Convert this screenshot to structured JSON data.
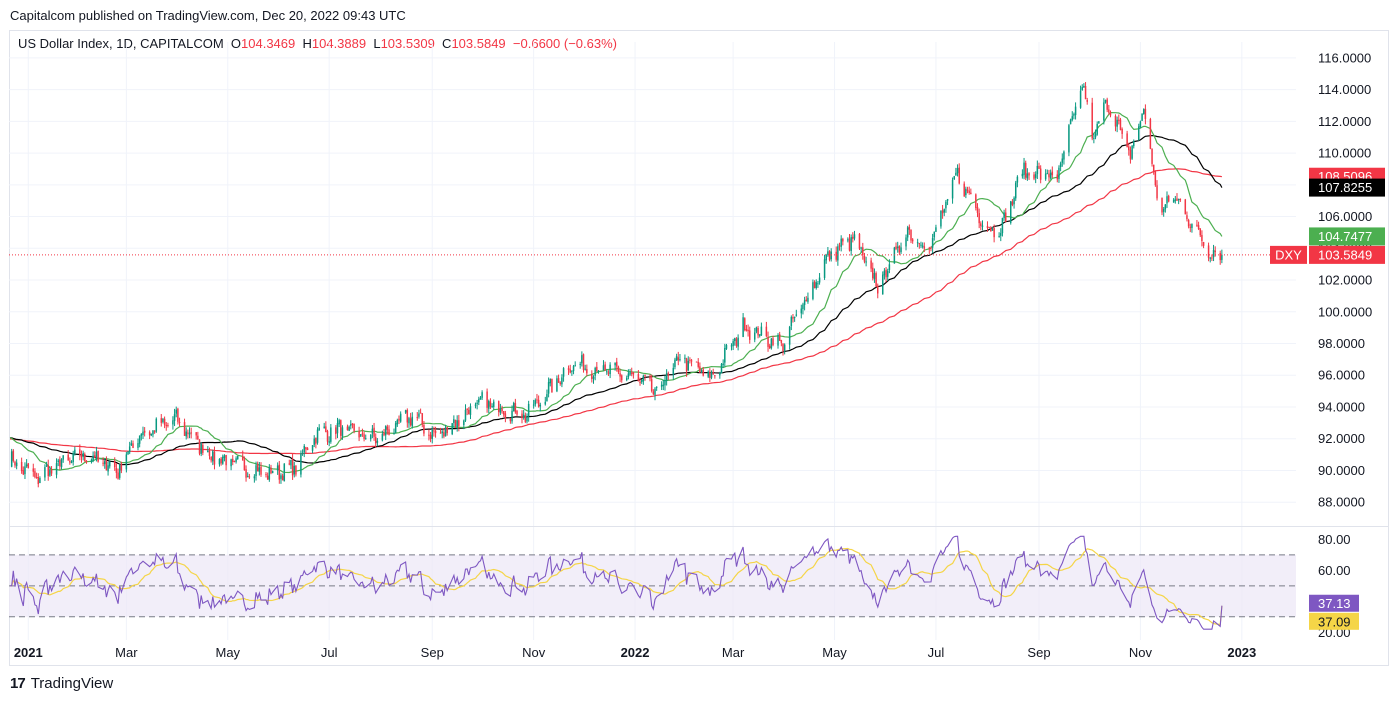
{
  "header": {
    "published": "Capitalcom published on TradingView.com, Dec 20, 2022 09:43 UTC"
  },
  "legend": {
    "symbol": "US Dollar Index, 1D, CAPITALCOM",
    "o_label": "O",
    "o_value": "104.3469",
    "h_label": "H",
    "h_value": "104.3889",
    "l_label": "L",
    "l_value": "103.5309",
    "c_label": "C",
    "c_value": "103.5849",
    "change": "−0.6600 (−0.63%)"
  },
  "footer": {
    "brand": "TradingView",
    "logo": "17"
  },
  "colors": {
    "up": "#089981",
    "down": "#f23645",
    "ma_fast": "#4caf50",
    "ma_mid": "#000000",
    "ma_slow": "#f23645",
    "rsi": "#7e57c2",
    "rsi_ma": "#f5d547",
    "rsi_band": "#ede7f6"
  },
  "chart_data": {
    "type": "candlestick",
    "price_axis": {
      "ticks": [
        "116.0000",
        "114.0000",
        "112.0000",
        "110.0000",
        "108.0000",
        "106.0000",
        "104.0000",
        "102.0000",
        "100.0000",
        "98.0000",
        "96.0000",
        "94.0000",
        "92.0000",
        "90.0000",
        "88.0000"
      ],
      "tick_values": [
        116,
        114,
        112,
        110,
        108,
        106,
        104,
        102,
        100,
        98,
        96,
        94,
        92,
        90,
        88
      ],
      "ylim": [
        86.5,
        117
      ]
    },
    "time_axis": {
      "labels": [
        "2021",
        "Mar",
        "May",
        "Jul",
        "Sep",
        "Nov",
        "2022",
        "Mar",
        "May",
        "Jul",
        "Sep",
        "Nov",
        "2023"
      ],
      "bold": [
        "2021",
        "2022",
        "2023"
      ],
      "label_dates": [
        "2021-01-01",
        "2021-03-01",
        "2021-05-01",
        "2021-07-01",
        "2021-09-01",
        "2021-11-01",
        "2022-01-01",
        "2022-03-01",
        "2022-05-01",
        "2022-07-01",
        "2022-09-01",
        "2022-11-01",
        "2023-01-01"
      ],
      "first_date": "2020-12-21",
      "last_date": "2022-12-20",
      "axis_end_date": "2023-02-05"
    },
    "close_anchors": [
      [
        "2020-12-21",
        90.7
      ],
      [
        "2021-01-06",
        89.5
      ],
      [
        "2021-01-20",
        90.4
      ],
      [
        "2021-02-05",
        91.0
      ],
      [
        "2021-02-24",
        90.0
      ],
      [
        "2021-03-08",
        92.2
      ],
      [
        "2021-03-31",
        93.2
      ],
      [
        "2021-04-20",
        91.0
      ],
      [
        "2021-05-10",
        90.2
      ],
      [
        "2021-05-25",
        89.8
      ],
      [
        "2021-06-10",
        90.1
      ],
      [
        "2021-06-22",
        92.2
      ],
      [
        "2021-07-07",
        92.6
      ],
      [
        "2021-07-30",
        92.0
      ],
      [
        "2021-08-20",
        93.5
      ],
      [
        "2021-09-03",
        92.1
      ],
      [
        "2021-09-30",
        94.3
      ],
      [
        "2021-10-28",
        93.5
      ],
      [
        "2021-11-24",
        96.7
      ],
      [
        "2021-12-31",
        95.9
      ],
      [
        "2022-01-14",
        94.9
      ],
      [
        "2022-01-28",
        97.1
      ],
      [
        "2022-02-16",
        95.8
      ],
      [
        "2022-03-07",
        99.1
      ],
      [
        "2022-03-30",
        97.9
      ],
      [
        "2022-04-28",
        103.6
      ],
      [
        "2022-05-12",
        104.6
      ],
      [
        "2022-05-27",
        101.6
      ],
      [
        "2022-06-14",
        105.1
      ],
      [
        "2022-06-27",
        104.0
      ],
      [
        "2022-07-14",
        108.7
      ],
      [
        "2022-08-01",
        105.2
      ],
      [
        "2022-08-10",
        105.4
      ],
      [
        "2022-08-22",
        108.9
      ],
      [
        "2022-09-12",
        108.5
      ],
      [
        "2022-09-27",
        114.3
      ],
      [
        "2022-10-04",
        110.9
      ],
      [
        "2022-10-12",
        113.3
      ],
      [
        "2022-10-26",
        109.8
      ],
      [
        "2022-11-03",
        112.9
      ],
      [
        "2022-11-10",
        107.9
      ],
      [
        "2022-11-15",
        106.3
      ],
      [
        "2022-11-21",
        107.4
      ],
      [
        "2022-11-30",
        105.9
      ],
      [
        "2022-12-05",
        105.0
      ],
      [
        "2022-12-14",
        103.7
      ],
      [
        "2022-12-20",
        103.58
      ]
    ],
    "ma_last": {
      "fast": 104.7477,
      "mid": 107.8255,
      "slow": 108.5096
    },
    "price_labels": [
      {
        "symbol": "",
        "value": "108.5096",
        "color": "#f23645"
      },
      {
        "symbol": "",
        "value": "107.8255",
        "color": "#000000"
      },
      {
        "symbol": "",
        "value": "104.7477",
        "color": "#4caf50"
      },
      {
        "symbol": "DXY",
        "value": "103.5849",
        "color": "#f23645"
      }
    ],
    "last_price": 103.5849,
    "rsi": {
      "ticks": [
        "80.00",
        "60.00",
        "20.00"
      ],
      "tick_values": [
        80,
        60,
        20
      ],
      "ylim": [
        15,
        88
      ],
      "band": [
        30,
        70
      ],
      "mid": 50,
      "last": "37.13",
      "ma_last": "37.09",
      "last_value": 37.13,
      "ma_last_value": 37.09
    }
  }
}
